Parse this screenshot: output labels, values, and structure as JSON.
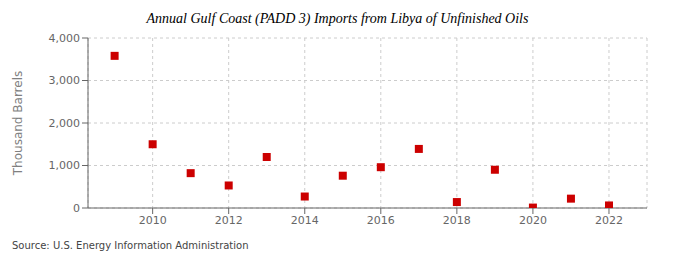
{
  "chart_data": {
    "type": "scatter",
    "title": "Annual Gulf Coast (PADD 3) Imports from Libya of Unfinished Oils",
    "ylabel": "Thousand Barrels",
    "source": "Source: U.S. Energy Information Administration",
    "x": [
      2009,
      2010,
      2011,
      2012,
      2013,
      2014,
      2015,
      2016,
      2017,
      2018,
      2019,
      2020,
      2021,
      2022
    ],
    "values": [
      3580,
      1500,
      820,
      530,
      1200,
      270,
      760,
      960,
      1390,
      140,
      900,
      10,
      220,
      60
    ],
    "color": "#cc0000",
    "marker": "square",
    "xlim": [
      2008.3,
      2023.0
    ],
    "xticks": [
      2010,
      2012,
      2014,
      2016,
      2018,
      2020,
      2022
    ],
    "ylim": [
      0,
      4000
    ],
    "yticks": [
      0,
      {
        "value": 1000,
        "label": "1,000"
      },
      {
        "value": 2000,
        "label": "2,000"
      },
      {
        "value": 3000,
        "label": "3,000"
      },
      {
        "value": 4000,
        "label": "4,000"
      }
    ],
    "grid": true
  }
}
